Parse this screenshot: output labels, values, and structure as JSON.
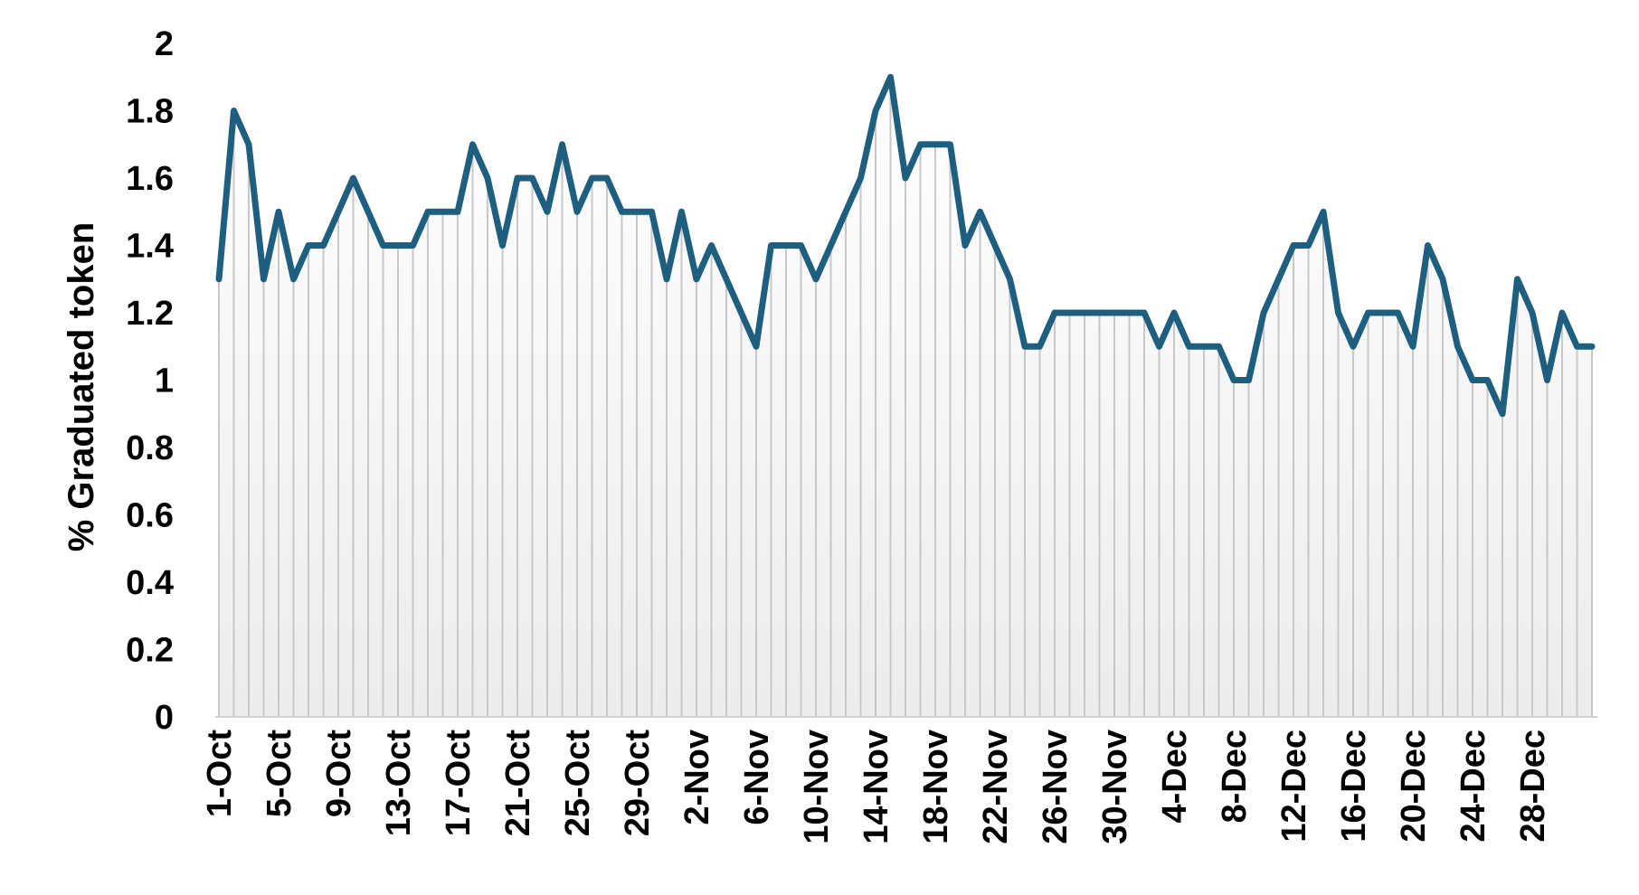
{
  "chart_data": {
    "type": "line",
    "title": "",
    "xlabel": "",
    "ylabel": "% Graduated token",
    "ylim": [
      0,
      2
    ],
    "y_ticks": [
      "0",
      "0.2",
      "0.4",
      "0.6",
      "0.8",
      "1",
      "1.2",
      "1.4",
      "1.6",
      "1.8",
      "2"
    ],
    "x_tick_labels": [
      "1-Oct",
      "5-Oct",
      "9-Oct",
      "13-Oct",
      "17-Oct",
      "21-Oct",
      "25-Oct",
      "29-Oct",
      "2-Nov",
      "6-Nov",
      "10-Nov",
      "14-Nov",
      "18-Nov",
      "22-Nov",
      "26-Nov",
      "30-Nov",
      "4-Dec",
      "8-Dec",
      "12-Dec",
      "16-Dec",
      "20-Dec",
      "24-Dec",
      "28-Dec"
    ],
    "x_tick_every_days": 4,
    "line_color": "#1e5f80",
    "area_fill_top": "#ffffff",
    "area_fill_bottom": "#ececec",
    "drop_line_color": "#c8c8c8",
    "grid": false,
    "legend": "none",
    "series": [
      {
        "values": [
          1.3,
          1.8,
          1.7,
          1.3,
          1.5,
          1.3,
          1.4,
          1.4,
          1.5,
          1.6,
          1.5,
          1.4,
          1.4,
          1.4,
          1.5,
          1.5,
          1.5,
          1.7,
          1.6,
          1.4,
          1.6,
          1.6,
          1.5,
          1.7,
          1.5,
          1.6,
          1.6,
          1.5,
          1.5,
          1.5,
          1.3,
          1.5,
          1.3,
          1.4,
          1.3,
          1.2,
          1.1,
          1.4,
          1.4,
          1.4,
          1.3,
          1.4,
          1.5,
          1.6,
          1.8,
          1.9,
          1.6,
          1.7,
          1.7,
          1.7,
          1.4,
          1.5,
          1.4,
          1.3,
          1.1,
          1.1,
          1.2,
          1.2,
          1.2,
          1.2,
          1.2,
          1.2,
          1.2,
          1.1,
          1.2,
          1.1,
          1.1,
          1.1,
          1.0,
          1.0,
          1.2,
          1.3,
          1.4,
          1.4,
          1.5,
          1.2,
          1.1,
          1.2,
          1.2,
          1.2,
          1.1,
          1.4,
          1.3,
          1.1,
          1.0,
          1.0,
          0.9,
          1.3,
          1.2,
          1.0,
          1.2,
          1.1,
          1.1
        ]
      }
    ]
  }
}
